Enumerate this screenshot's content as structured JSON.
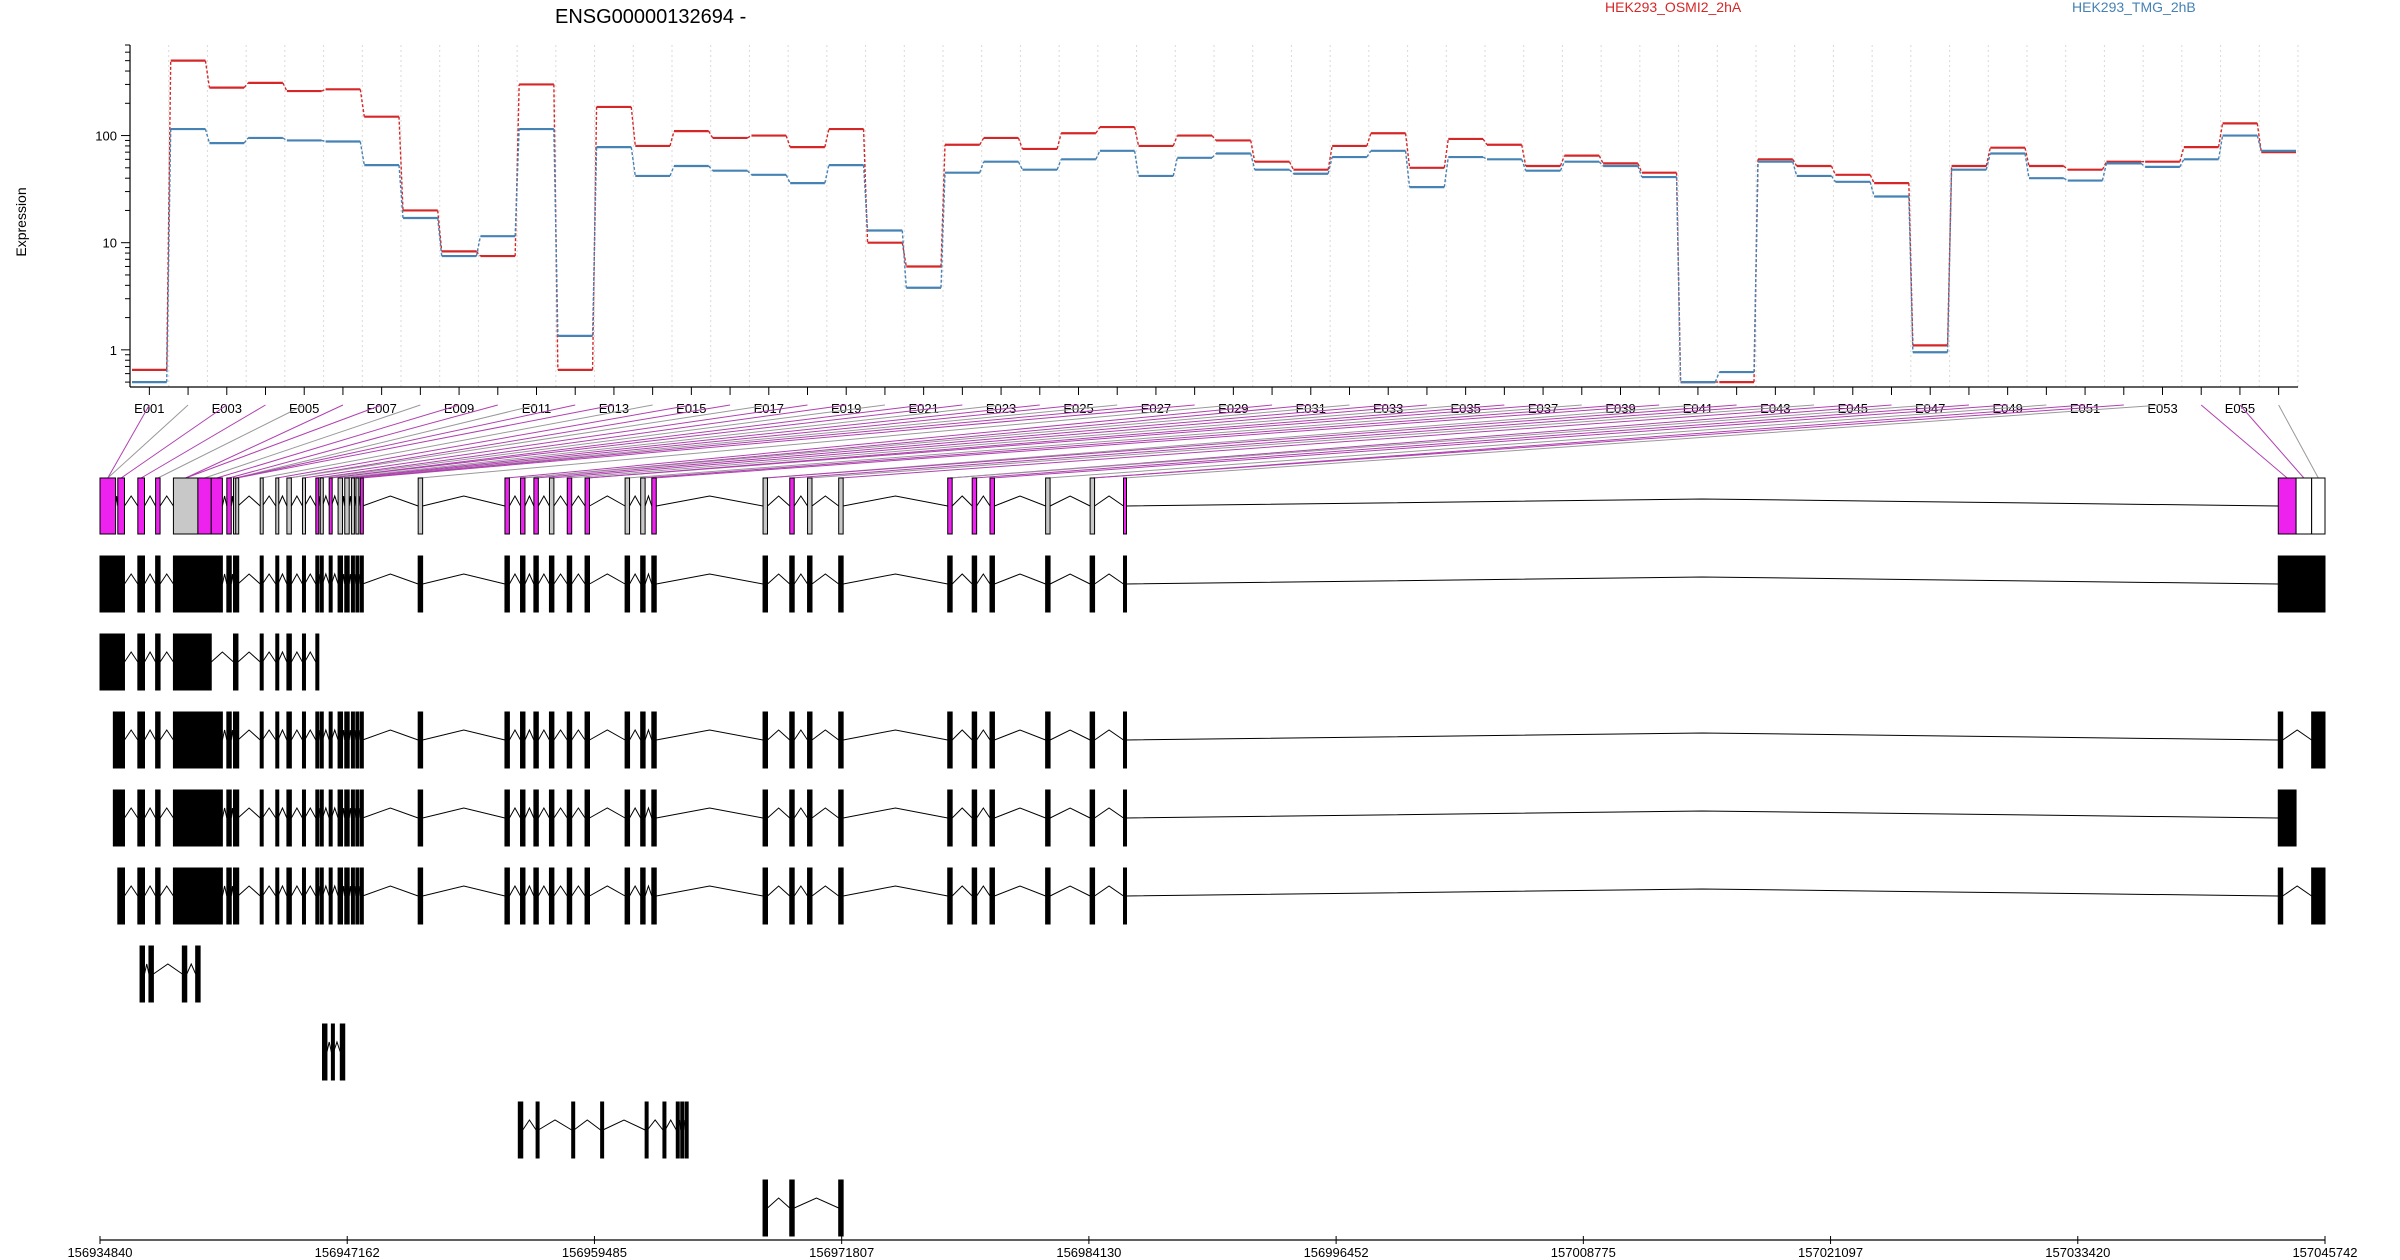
{
  "chart_data": {
    "type": "line",
    "title": "ENSG00000132694 -",
    "ylabel": "Expression",
    "yscale": "log",
    "ylim": [
      0.45,
      700
    ],
    "y_ticks": [
      1,
      10,
      100
    ],
    "y_tick_labels": [
      "1",
      "10",
      "100"
    ],
    "grid": "vertical dotted lines between exon bins",
    "legend": "top",
    "categories": [
      "E001",
      "E002",
      "E003",
      "E004",
      "E005",
      "E006",
      "E007",
      "E008",
      "E009",
      "E010",
      "E011",
      "E012",
      "E013",
      "E014",
      "E015",
      "E016",
      "E017",
      "E018",
      "E019",
      "E020",
      "E021",
      "E022",
      "E023",
      "E024",
      "E025",
      "E026",
      "E027",
      "E028",
      "E029",
      "E030",
      "E031",
      "E032",
      "E033",
      "E034",
      "E035",
      "E036",
      "E037",
      "E038",
      "E039",
      "E040",
      "E041",
      "E042",
      "E043",
      "E044",
      "E045",
      "E046",
      "E047",
      "E048",
      "E049",
      "E050",
      "E051",
      "E052",
      "E053",
      "E054",
      "E055",
      "E056"
    ],
    "x_tick_labels": [
      "E001",
      "E003",
      "E005",
      "E007",
      "E009",
      "E011",
      "E013",
      "E015",
      "E017",
      "E019",
      "E021",
      "E023",
      "E025",
      "E027",
      "E029",
      "E031",
      "E033",
      "E035",
      "E037",
      "E039",
      "E041",
      "E043",
      "E045",
      "E047",
      "E049",
      "E051",
      "E053",
      "E055"
    ],
    "series": [
      {
        "name": "HEK293_OSMI2_2hA",
        "color": "#d62728",
        "values": [
          0.65,
          500,
          280,
          310,
          260,
          270,
          150,
          20,
          8.3,
          7.5,
          300,
          0.65,
          185,
          80,
          110,
          95,
          100,
          78,
          115,
          10,
          6,
          82,
          95,
          75,
          105,
          120,
          80,
          100,
          90,
          57,
          48,
          80,
          105,
          50,
          93,
          82,
          52,
          65,
          55,
          45,
          0.5,
          0.5,
          60,
          52,
          43,
          36,
          1.1,
          52,
          77,
          52,
          48,
          57,
          57,
          78,
          130,
          70
        ]
      },
      {
        "name": "HEK293_TMG_2hB",
        "color": "#4682b4",
        "values": [
          0.5,
          115,
          85,
          95,
          90,
          88,
          53,
          17,
          7.5,
          11.5,
          115,
          1.35,
          78,
          42,
          52,
          47,
          43,
          36,
          53,
          13,
          3.8,
          45,
          57,
          48,
          60,
          72,
          42,
          62,
          68,
          48,
          44,
          63,
          72,
          33,
          63,
          60,
          47,
          57,
          52,
          41,
          0.5,
          0.62,
          57,
          42,
          37,
          27,
          0.95,
          48,
          68,
          40,
          38,
          55,
          51,
          60,
          100,
          72
        ]
      }
    ],
    "genomic_axis": {
      "labels": [
        "156934840",
        "156947162",
        "156959485",
        "156971807",
        "156984130",
        "156996452",
        "157008775",
        "157021097",
        "157033420",
        "157045742"
      ]
    },
    "gene_model_tracks": 10
  }
}
